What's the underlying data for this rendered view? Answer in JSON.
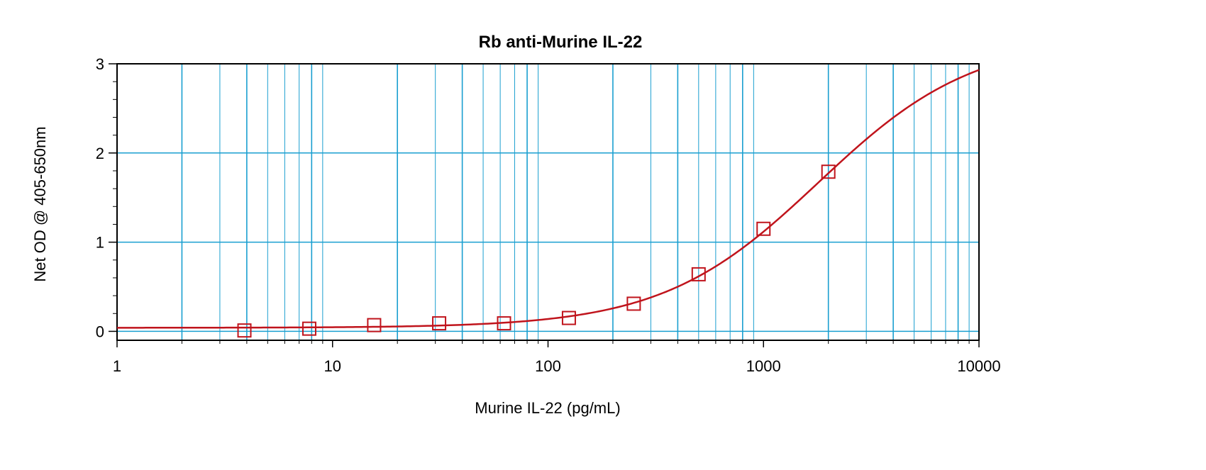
{
  "chart_data": {
    "type": "scatter",
    "title": "Rb anti-Murine IL-22",
    "xlabel": "Murine IL-22 (pg/mL)",
    "ylabel": "Net OD @ 405-650nm",
    "xscale": "log",
    "xlim": [
      1,
      10000
    ],
    "ylim": [
      -0.1,
      3
    ],
    "xticks": [
      1,
      10,
      100,
      1000,
      10000
    ],
    "xtick_labels": [
      "1",
      "10",
      "100",
      "1000",
      "10000"
    ],
    "yticks": [
      0,
      1,
      2,
      3
    ],
    "ytick_labels": [
      "0",
      "1",
      "2",
      "3"
    ],
    "grid": true,
    "colors": {
      "grid": "#1a9fd0",
      "series": "#c0141c"
    },
    "points": [
      {
        "x": 3.9,
        "y": 0.01
      },
      {
        "x": 7.8,
        "y": 0.03
      },
      {
        "x": 15.6,
        "y": 0.07
      },
      {
        "x": 31.25,
        "y": 0.09
      },
      {
        "x": 62.5,
        "y": 0.09
      },
      {
        "x": 125,
        "y": 0.15
      },
      {
        "x": 250,
        "y": 0.31
      },
      {
        "x": 500,
        "y": 0.64
      },
      {
        "x": 1000,
        "y": 1.15
      },
      {
        "x": 2000,
        "y": 1.79
      }
    ],
    "fit_curve": {
      "type": "4PL",
      "bottom": 0.04,
      "top": 3.3,
      "ec50": 1800,
      "hill": 1.2
    }
  }
}
